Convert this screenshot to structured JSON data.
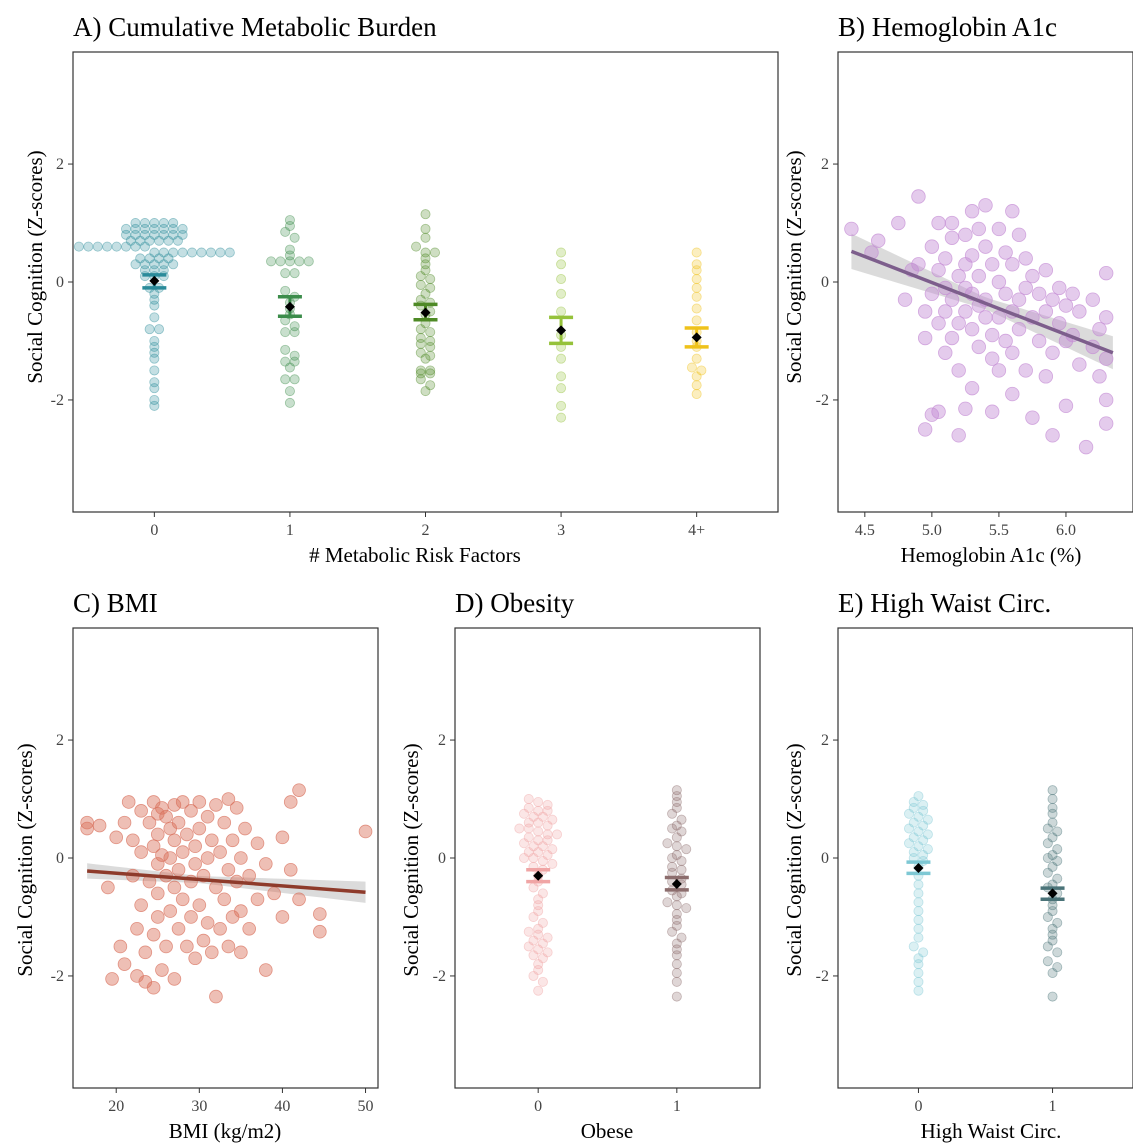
{
  "chart_data": [
    {
      "id": "A",
      "type": "scatter",
      "subtype": "beeswarm-with-mean-se",
      "title": "A) Cumulative Metabolic Burden",
      "xlabel": "# Metabolic Risk Factors",
      "ylabel": "Social Cognition (Z-scores)",
      "categories": [
        "0",
        "1",
        "2",
        "3",
        "4+"
      ],
      "ylim": [
        -3.9,
        3.9
      ],
      "yticks": [
        -2,
        0,
        2
      ],
      "colors": [
        "#2a8b9a",
        "#3b8c4a",
        "#4e8a25",
        "#95c23a",
        "#efc21a"
      ],
      "points": [
        [
          1.0,
          1.0,
          1.0,
          1.0,
          1.0,
          0.9,
          0.9,
          0.9,
          0.9,
          0.9,
          0.9,
          0.9,
          0.8,
          0.8,
          0.8,
          0.8,
          0.8,
          0.8,
          0.8,
          0.7,
          0.7,
          0.7,
          0.7,
          0.7,
          0.7,
          0.6,
          0.6,
          0.6,
          0.6,
          0.6,
          0.6,
          0.6,
          0.6,
          0.5,
          0.5,
          0.5,
          0.5,
          0.5,
          0.5,
          0.5,
          0.5,
          0.5,
          0.4,
          0.4,
          0.4,
          0.4,
          0.3,
          0.3,
          0.3,
          0.3,
          0.3,
          0.2,
          0.2,
          0.2,
          0.1,
          0.1,
          0.1,
          -0.1,
          -0.1,
          -0.2,
          -0.3,
          -0.4,
          -0.6,
          -0.8,
          -0.8,
          -1.0,
          -1.1,
          -1.2,
          -1.3,
          -1.5,
          -1.7,
          -1.8,
          -2.0,
          -2.1
        ],
        [
          1.05,
          0.95,
          0.85,
          0.75,
          0.55,
          0.45,
          0.35,
          0.35,
          0.35,
          0.35,
          0.35,
          0.15,
          0.15,
          -0.15,
          -0.25,
          -0.35,
          -0.45,
          -0.55,
          -0.65,
          -0.75,
          -0.85,
          -0.85,
          -1.15,
          -1.25,
          -1.35,
          -1.35,
          -1.45,
          -1.65,
          -1.65,
          -1.85,
          -2.05
        ],
        [
          1.15,
          0.9,
          0.75,
          0.6,
          0.5,
          0.5,
          0.4,
          0.3,
          0.2,
          0.1,
          0.05,
          -0.05,
          -0.1,
          -0.2,
          -0.3,
          -0.35,
          -0.4,
          -0.5,
          -0.55,
          -0.7,
          -0.8,
          -0.85,
          -0.95,
          -1.0,
          -1.05,
          -1.1,
          -1.2,
          -1.25,
          -1.3,
          -1.5,
          -1.5,
          -1.55,
          -1.55,
          -1.65,
          -1.75,
          -1.85
        ],
        [
          0.5,
          0.3,
          0.05,
          -0.2,
          -0.5,
          -0.9,
          -1.1,
          -1.3,
          -1.6,
          -1.8,
          -2.1,
          -2.3
        ],
        [
          0.5,
          0.3,
          0.2,
          0.05,
          -0.1,
          -0.25,
          -0.45,
          -0.65,
          -0.85,
          -1.0,
          -1.1,
          -1.3,
          -1.45,
          -1.5,
          -1.6,
          -1.75,
          -1.9
        ]
      ],
      "means": [
        0.02,
        -0.42,
        -0.52,
        -0.82,
        -0.94
      ],
      "se_low": [
        -0.1,
        -0.58,
        -0.64,
        -1.04,
        -1.1
      ],
      "se_high": [
        0.12,
        -0.25,
        -0.38,
        -0.6,
        -0.78
      ]
    },
    {
      "id": "B",
      "type": "scatter",
      "title": "B) Hemoglobin A1c",
      "xlabel": "Hemoglobin A1c (%)",
      "ylabel": "Social Cognition (Z-scores)",
      "xlim": [
        4.3,
        6.5
      ],
      "xticks": [
        "4.5",
        "5.0",
        "5.5",
        "6.0"
      ],
      "ylim": [
        -3.9,
        3.9
      ],
      "yticks": [
        -2,
        0,
        2
      ],
      "point_color": "#c48bd4",
      "line_color": "#7d5e8c",
      "fit": {
        "x": [
          4.4,
          6.35
        ],
        "y": [
          0.52,
          -1.2
        ]
      },
      "band_halfwidth": {
        "x": [
          4.4,
          5.4,
          6.35
        ],
        "w": [
          0.3,
          0.1,
          0.28
        ]
      },
      "points": [
        [
          4.4,
          0.9
        ],
        [
          4.55,
          0.5
        ],
        [
          4.6,
          0.7
        ],
        [
          4.75,
          1.0
        ],
        [
          4.8,
          -0.3
        ],
        [
          4.85,
          0.2
        ],
        [
          4.9,
          1.45
        ],
        [
          4.9,
          0.3
        ],
        [
          4.95,
          -0.5
        ],
        [
          4.95,
          -0.95
        ],
        [
          4.95,
          -2.5
        ],
        [
          5.0,
          0.6
        ],
        [
          5.0,
          -0.2
        ],
        [
          5.05,
          1.0
        ],
        [
          5.05,
          0.2
        ],
        [
          5.05,
          -0.7
        ],
        [
          5.0,
          -2.25
        ],
        [
          5.05,
          -2.2
        ],
        [
          5.1,
          0.4
        ],
        [
          5.1,
          -0.1
        ],
        [
          5.1,
          -0.5
        ],
        [
          5.1,
          -1.2
        ],
        [
          5.15,
          1.0
        ],
        [
          5.15,
          0.75
        ],
        [
          5.15,
          -0.3
        ],
        [
          5.15,
          -0.95
        ],
        [
          5.2,
          0.1
        ],
        [
          5.2,
          -0.7
        ],
        [
          5.2,
          -1.5
        ],
        [
          5.2,
          -2.6
        ],
        [
          5.25,
          0.8
        ],
        [
          5.25,
          0.3
        ],
        [
          5.25,
          -0.1
        ],
        [
          5.25,
          -0.5
        ],
        [
          5.25,
          -2.15
        ],
        [
          5.3,
          1.2
        ],
        [
          5.3,
          0.45
        ],
        [
          5.3,
          -0.2
        ],
        [
          5.3,
          -0.8
        ],
        [
          5.3,
          -1.8
        ],
        [
          5.35,
          0.9
        ],
        [
          5.35,
          0.1
        ],
        [
          5.35,
          -0.4
        ],
        [
          5.35,
          -1.1
        ],
        [
          5.4,
          1.3
        ],
        [
          5.4,
          0.6
        ],
        [
          5.4,
          -0.3
        ],
        [
          5.4,
          -0.6
        ],
        [
          5.45,
          0.3
        ],
        [
          5.45,
          -0.9
        ],
        [
          5.45,
          -1.3
        ],
        [
          5.45,
          -2.2
        ],
        [
          5.5,
          0.9
        ],
        [
          5.5,
          0.0
        ],
        [
          5.5,
          -0.6
        ],
        [
          5.5,
          -1.5
        ],
        [
          5.55,
          0.5
        ],
        [
          5.55,
          -0.2
        ],
        [
          5.55,
          -1.0
        ],
        [
          5.6,
          1.2
        ],
        [
          5.6,
          0.3
        ],
        [
          5.6,
          -0.5
        ],
        [
          5.6,
          -1.2
        ],
        [
          5.6,
          -1.9
        ],
        [
          5.65,
          0.8
        ],
        [
          5.65,
          -0.3
        ],
        [
          5.65,
          -0.8
        ],
        [
          5.7,
          0.4
        ],
        [
          5.7,
          -0.1
        ],
        [
          5.7,
          -1.5
        ],
        [
          5.75,
          0.1
        ],
        [
          5.75,
          -0.6
        ],
        [
          5.75,
          -2.3
        ],
        [
          5.8,
          -0.2
        ],
        [
          5.8,
          -1.0
        ],
        [
          5.85,
          0.2
        ],
        [
          5.85,
          -0.5
        ],
        [
          5.85,
          -1.6
        ],
        [
          5.9,
          -0.3
        ],
        [
          5.9,
          -1.2
        ],
        [
          5.9,
          -2.6
        ],
        [
          5.95,
          -0.1
        ],
        [
          5.95,
          -0.7
        ],
        [
          6.0,
          -0.4
        ],
        [
          6.0,
          -1.0
        ],
        [
          6.0,
          -2.1
        ],
        [
          6.05,
          -0.2
        ],
        [
          6.05,
          -0.9
        ],
        [
          6.1,
          -0.5
        ],
        [
          6.1,
          -1.4
        ],
        [
          6.15,
          -2.8
        ],
        [
          6.2,
          -0.3
        ],
        [
          6.2,
          -1.1
        ],
        [
          6.25,
          -0.8
        ],
        [
          6.25,
          -1.6
        ],
        [
          6.3,
          0.15
        ],
        [
          6.3,
          -0.6
        ],
        [
          6.3,
          -1.3
        ],
        [
          6.3,
          -2.0
        ],
        [
          6.3,
          -2.4
        ]
      ]
    },
    {
      "id": "C",
      "type": "scatter",
      "title": "C) BMI",
      "xlabel": "BMI (kg/m2)",
      "ylabel": "Social Cognition (Z-scores)",
      "xlim": [
        14.8,
        51.5
      ],
      "xticks": [
        "20",
        "30",
        "40",
        "50"
      ],
      "ylim": [
        -3.9,
        3.9
      ],
      "yticks": [
        -2,
        0,
        2
      ],
      "point_color": "#d9705c",
      "line_color": "#8e3b2b",
      "fit": {
        "x": [
          16.5,
          50
        ],
        "y": [
          -0.22,
          -0.58
        ]
      },
      "band_halfwidth": {
        "x": [
          16.5,
          30,
          50
        ],
        "w": [
          0.13,
          0.06,
          0.18
        ]
      },
      "points": [
        [
          16.5,
          0.6
        ],
        [
          16.5,
          0.5
        ],
        [
          18,
          0.55
        ],
        [
          19,
          -0.5
        ],
        [
          19.5,
          -2.05
        ],
        [
          20,
          0.35
        ],
        [
          20.5,
          -1.5
        ],
        [
          21,
          0.6
        ],
        [
          21,
          -1.8
        ],
        [
          21.5,
          0.95
        ],
        [
          22,
          0.3
        ],
        [
          22,
          -0.3
        ],
        [
          22.5,
          -1.2
        ],
        [
          22.5,
          -2.0
        ],
        [
          23,
          0.8
        ],
        [
          23,
          0.1
        ],
        [
          23,
          -0.8
        ],
        [
          23.5,
          -1.6
        ],
        [
          23.5,
          -2.1
        ],
        [
          24,
          0.6
        ],
        [
          24,
          -0.4
        ],
        [
          24.5,
          0.95
        ],
        [
          24.5,
          0.2
        ],
        [
          24.5,
          -1.3
        ],
        [
          24.5,
          -2.2
        ],
        [
          25,
          0.75
        ],
        [
          25,
          0.4
        ],
        [
          25,
          -0.1
        ],
        [
          25,
          -0.6
        ],
        [
          25,
          -1.0
        ],
        [
          25.5,
          0.85
        ],
        [
          25.5,
          0.05
        ],
        [
          25.5,
          -1.9
        ],
        [
          26,
          0.7
        ],
        [
          26,
          -0.3
        ],
        [
          26,
          -1.5
        ],
        [
          26.5,
          0.5
        ],
        [
          26.5,
          0.0
        ],
        [
          26.5,
          -0.9
        ],
        [
          27,
          0.9
        ],
        [
          27,
          0.3
        ],
        [
          27,
          -0.5
        ],
        [
          27,
          -2.05
        ],
        [
          27.5,
          0.6
        ],
        [
          27.5,
          -0.2
        ],
        [
          27.5,
          -1.2
        ],
        [
          28,
          0.95
        ],
        [
          28,
          0.1
        ],
        [
          28,
          -0.7
        ],
        [
          28.5,
          0.4
        ],
        [
          28.5,
          -1.5
        ],
        [
          29,
          0.8
        ],
        [
          29,
          -0.4
        ],
        [
          29,
          -1.0
        ],
        [
          29.5,
          0.2
        ],
        [
          29.5,
          -0.1
        ],
        [
          29.5,
          -1.7
        ],
        [
          30,
          0.95
        ],
        [
          30,
          0.5
        ],
        [
          30,
          -0.8
        ],
        [
          30.5,
          -0.3
        ],
        [
          30.5,
          -1.4
        ],
        [
          31,
          0.7
        ],
        [
          31,
          0.0
        ],
        [
          31,
          -1.1
        ],
        [
          31.5,
          0.3
        ],
        [
          31.5,
          -1.6
        ],
        [
          32,
          0.9
        ],
        [
          32,
          -0.5
        ],
        [
          32,
          -2.35
        ],
        [
          32.5,
          0.1
        ],
        [
          32.5,
          -1.2
        ],
        [
          33,
          0.6
        ],
        [
          33,
          -0.7
        ],
        [
          33.5,
          1.0
        ],
        [
          33.5,
          -0.2
        ],
        [
          33.5,
          -1.5
        ],
        [
          34,
          0.3
        ],
        [
          34,
          -1.0
        ],
        [
          34.5,
          0.85
        ],
        [
          34.5,
          -0.4
        ],
        [
          35,
          0.0
        ],
        [
          35,
          -0.9
        ],
        [
          35,
          -1.6
        ],
        [
          35.5,
          0.5
        ],
        [
          36,
          -0.3
        ],
        [
          36,
          -1.2
        ],
        [
          37,
          0.25
        ],
        [
          37,
          -0.7
        ],
        [
          38,
          -0.1
        ],
        [
          38,
          -1.9
        ],
        [
          39,
          -0.6
        ],
        [
          40,
          0.35
        ],
        [
          40,
          -1.0
        ],
        [
          41,
          0.95
        ],
        [
          41,
          -0.2
        ],
        [
          42,
          1.15
        ],
        [
          42,
          -0.7
        ],
        [
          44.5,
          -1.25
        ],
        [
          44.5,
          -0.95
        ],
        [
          50,
          0.45
        ]
      ]
    },
    {
      "id": "D",
      "type": "scatter",
      "subtype": "beeswarm-with-mean-se",
      "title": "D) Obesity",
      "xlabel": "Obese",
      "ylabel": "Social Cognition (Z-scores)",
      "categories": [
        "0",
        "1"
      ],
      "ylim": [
        -3.9,
        3.9
      ],
      "yticks": [
        -2,
        0,
        2
      ],
      "colors": [
        "#f0a5a5",
        "#8c6d6d"
      ],
      "points": [
        [
          1.0,
          0.95,
          0.9,
          0.85,
          0.8,
          0.8,
          0.75,
          0.7,
          0.7,
          0.65,
          0.6,
          0.6,
          0.55,
          0.5,
          0.5,
          0.45,
          0.4,
          0.4,
          0.35,
          0.3,
          0.3,
          0.25,
          0.2,
          0.2,
          0.15,
          0.1,
          0.1,
          0.05,
          0.0,
          0.0,
          -0.05,
          -0.1,
          -0.15,
          -0.2,
          -0.3,
          -0.4,
          -0.5,
          -0.6,
          -0.7,
          -0.8,
          -0.9,
          -1.0,
          -1.1,
          -1.2,
          -1.25,
          -1.3,
          -1.35,
          -1.4,
          -1.45,
          -1.5,
          -1.55,
          -1.6,
          -1.65,
          -1.7,
          -1.8,
          -1.9,
          -2.0,
          -2.1,
          -2.25
        ],
        [
          1.15,
          1.05,
          0.95,
          0.85,
          0.75,
          0.65,
          0.55,
          0.5,
          0.45,
          0.35,
          0.25,
          0.2,
          0.15,
          0.05,
          0.0,
          -0.05,
          -0.15,
          -0.2,
          -0.25,
          -0.35,
          -0.4,
          -0.45,
          -0.55,
          -0.6,
          -0.65,
          -0.75,
          -0.8,
          -0.85,
          -0.95,
          -1.05,
          -1.15,
          -1.25,
          -1.35,
          -1.45,
          -1.55,
          -1.65,
          -1.8,
          -1.95,
          -2.1,
          -2.35
        ]
      ],
      "means": [
        -0.3,
        -0.44
      ],
      "se_low": [
        -0.4,
        -0.54
      ],
      "se_high": [
        -0.2,
        -0.33
      ]
    },
    {
      "id": "E",
      "type": "scatter",
      "subtype": "beeswarm-with-mean-se",
      "title": "E) High Waist Circ.",
      "xlabel": "High Waist Circ.",
      "ylabel": "Social Cognition (Z-scores)",
      "categories": [
        "0",
        "1"
      ],
      "ylim": [
        -3.9,
        3.9
      ],
      "yticks": [
        -2,
        0,
        2
      ],
      "colors": [
        "#7ec8d4",
        "#4a7378"
      ],
      "points": [
        [
          1.05,
          0.95,
          0.9,
          0.85,
          0.8,
          0.75,
          0.7,
          0.65,
          0.6,
          0.55,
          0.5,
          0.45,
          0.4,
          0.35,
          0.3,
          0.25,
          0.2,
          0.15,
          0.1,
          0.05,
          0.0,
          -0.05,
          -0.15,
          -0.3,
          -0.45,
          -0.6,
          -0.75,
          -0.9,
          -1.05,
          -1.2,
          -1.35,
          -1.5,
          -1.6,
          -1.7,
          -1.8,
          -1.95,
          -2.1,
          -2.25
        ],
        [
          1.15,
          1.0,
          0.85,
          0.75,
          0.6,
          0.5,
          0.45,
          0.35,
          0.25,
          0.15,
          0.05,
          0.0,
          -0.05,
          -0.15,
          -0.25,
          -0.35,
          -0.45,
          -0.5,
          -0.6,
          -0.7,
          -0.8,
          -0.9,
          -1.0,
          -1.1,
          -1.2,
          -1.3,
          -1.4,
          -1.5,
          -1.6,
          -1.75,
          -1.85,
          -1.95,
          -2.35
        ]
      ],
      "means": [
        -0.17,
        -0.6
      ],
      "se_low": [
        -0.26,
        -0.7
      ],
      "se_high": [
        -0.07,
        -0.51
      ]
    }
  ]
}
